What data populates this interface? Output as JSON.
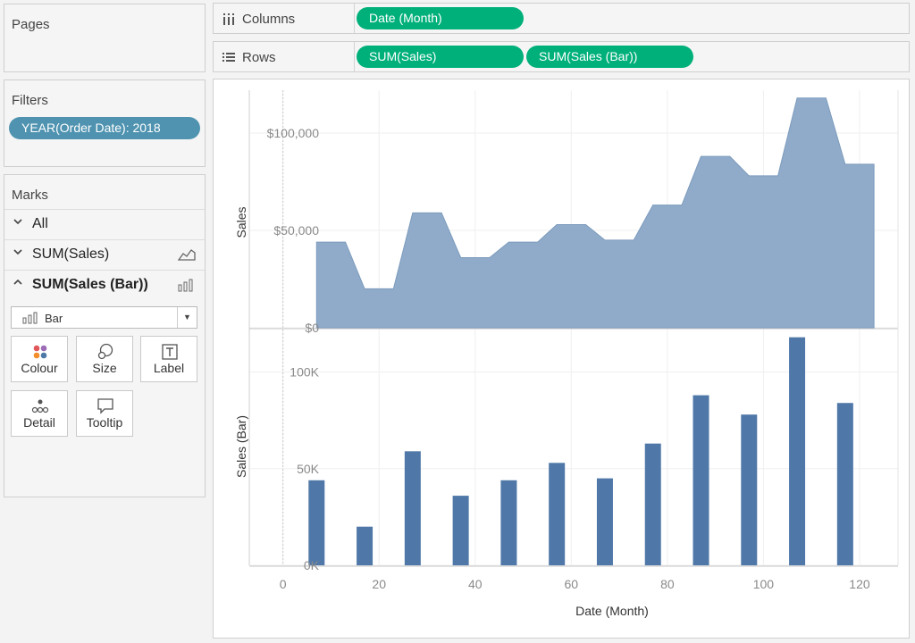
{
  "panels": {
    "pages_title": "Pages",
    "filters_title": "Filters",
    "filter_pill": "YEAR(Order Date): 2018",
    "marks_title": "Marks"
  },
  "marks": {
    "items": [
      {
        "label": "All",
        "expanded": false,
        "icon": "none"
      },
      {
        "label": "SUM(Sales)",
        "expanded": false,
        "icon": "area-chart-icon"
      },
      {
        "label": "SUM(Sales (Bar))",
        "expanded": true,
        "icon": "bar-chart-icon"
      }
    ],
    "mark_type": "Bar",
    "buttons": [
      {
        "label": "Colour",
        "icon": "colour-dots-icon"
      },
      {
        "label": "Size",
        "icon": "size-circles-icon"
      },
      {
        "label": "Label",
        "icon": "label-t-icon"
      },
      {
        "label": "Detail",
        "icon": "detail-dots-icon"
      },
      {
        "label": "Tooltip",
        "icon": "tooltip-bubble-icon"
      }
    ]
  },
  "shelves": {
    "columns_label": "Columns",
    "rows_label": "Rows",
    "columns_pills": [
      "Date (Month)"
    ],
    "rows_pills": [
      "SUM(Sales)",
      "SUM(Sales (Bar))"
    ]
  },
  "colors": {
    "pill_green": "#00b07a",
    "filter_blue": "#4f93b0",
    "area_fill": "#8fabc9",
    "bar_fill": "#4f78a8"
  },
  "chart_data": [
    {
      "type": "area",
      "ylabel": "Sales",
      "y_tick_labels": [
        "$0",
        "$50,000",
        "$100,000"
      ],
      "y_ticks": [
        0,
        50000,
        100000
      ],
      "ylim": [
        0,
        122000
      ],
      "xlim": [
        -7,
        128
      ],
      "x": [
        7,
        13,
        17,
        23,
        27,
        33,
        37,
        43,
        47,
        53,
        57,
        63,
        67,
        73,
        77,
        83,
        87,
        93,
        97,
        103,
        107,
        113,
        117,
        123
      ],
      "values": [
        44000,
        44000,
        20000,
        20000,
        59000,
        59000,
        36000,
        36000,
        44000,
        44000,
        53000,
        53000,
        45000,
        45000,
        63000,
        63000,
        88000,
        88000,
        78000,
        78000,
        118000,
        118000,
        84000,
        84000
      ]
    },
    {
      "type": "bar",
      "ylabel": "Sales (Bar)",
      "xlabel": "Date (Month)",
      "y_tick_labels": [
        "0K",
        "50K",
        "100K"
      ],
      "y_ticks": [
        0,
        50000,
        100000
      ],
      "ylim": [
        0,
        122000
      ],
      "x_tick_labels": [
        "0",
        "20",
        "40",
        "60",
        "80",
        "100",
        "120"
      ],
      "x_ticks": [
        0,
        20,
        40,
        60,
        80,
        100,
        120
      ],
      "xlim": [
        -7,
        128
      ],
      "x": [
        7,
        17,
        27,
        37,
        47,
        57,
        67,
        77,
        87,
        97,
        107,
        117
      ],
      "values": [
        44000,
        20000,
        59000,
        36000,
        44000,
        53000,
        45000,
        63000,
        88000,
        78000,
        118000,
        84000
      ]
    }
  ]
}
